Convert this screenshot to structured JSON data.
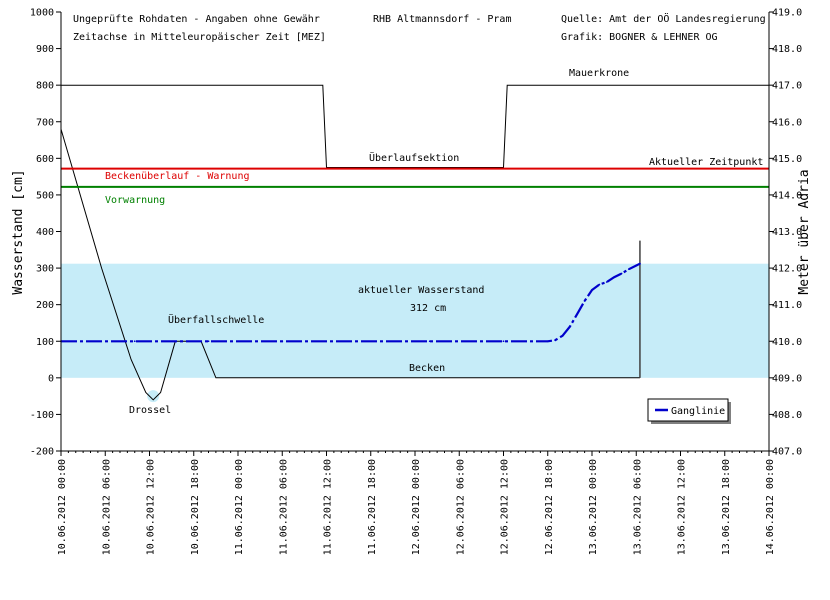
{
  "chart_data": {
    "type": "line",
    "header": {
      "left1": "Ungeprüfte Rohdaten - Angaben ohne Gewähr",
      "left2": "Zeitachse in Mitteleuropäischer Zeit [MEZ]",
      "center": "RHB Altmannsdorf - Pram",
      "right1": "Quelle: Amt der OÖ Landesregierung",
      "right2": "Grafik: BOGNER & LEHNER OG"
    },
    "ylabel": "Wasserstand [cm]",
    "ylabel_right": "Meter über Adria",
    "ylim": [
      -200,
      1000
    ],
    "y_ticks": [
      "-200",
      "-100",
      "0",
      "100",
      "200",
      "300",
      "400",
      "500",
      "600",
      "700",
      "800",
      "900",
      "1000"
    ],
    "y2lim": [
      407.0,
      419.0
    ],
    "y2_ticks": [
      "407.0",
      "408.0",
      "409.0",
      "410.0",
      "411.0",
      "412.0",
      "413.0",
      "414.0",
      "415.0",
      "416.0",
      "417.0",
      "418.0",
      "419.0"
    ],
    "x_range_hours": [
      0,
      96
    ],
    "x_ticks": [
      "10.06.2012 00:00",
      "10.06.2012 06:00",
      "10.06.2012 12:00",
      "10.06.2012 18:00",
      "11.06.2012 00:00",
      "11.06.2012 06:00",
      "11.06.2012 12:00",
      "11.06.2012 18:00",
      "12.06.2012 00:00",
      "12.06.2012 06:00",
      "12.06.2012 12:00",
      "12.06.2012 18:00",
      "13.06.2012 00:00",
      "13.06.2012 06:00",
      "13.06.2012 12:00",
      "13.06.2012 18:00",
      "14.06.2012 00:00"
    ],
    "grid": false,
    "colors": {
      "water": "#c6ecf8",
      "warning": "#dd0000",
      "prewarning": "#008000",
      "series": "#0000cc",
      "structure": "#000000"
    },
    "water_level": {
      "value": 312,
      "label": "aktueller Wasserstand",
      "value_label": "312 cm"
    },
    "thresholds": [
      {
        "name": "Beckenüberlauf - Warnung",
        "value": 572,
        "color": "#dd0000"
      },
      {
        "name": "Vorwarnung",
        "value": 522,
        "color": "#008000"
      }
    ],
    "current_time": {
      "label": "Aktueller Zeitpunkt",
      "hour": 78.5
    },
    "annotations": {
      "mauerkrone": "Mauerkrone",
      "ueberlaufsektion": "Überlaufsektion",
      "ueberfallschwelle": "Überfallschwelle",
      "drossel": "Drossel",
      "becken": "Becken"
    },
    "structure_profile": [
      [
        0,
        800
      ],
      [
        35.5,
        800
      ],
      [
        36,
        575
      ],
      [
        60,
        575
      ],
      [
        60.5,
        800
      ],
      [
        96,
        800
      ]
    ],
    "basin_profile": [
      [
        0,
        680
      ],
      [
        5.5,
        300
      ],
      [
        9.5,
        50
      ],
      [
        11.5,
        -40
      ],
      [
        12.5,
        -60
      ],
      [
        13.5,
        -40
      ],
      [
        15.5,
        100
      ],
      [
        19,
        100
      ],
      [
        21,
        0
      ],
      [
        78.5,
        0
      ]
    ],
    "legend": {
      "label": "Ganglinie",
      "position": "bottom-right"
    },
    "series": [
      {
        "name": "Ganglinie",
        "x": [
          0,
          10,
          20,
          30,
          40,
          50,
          60,
          66,
          67,
          68,
          69,
          70,
          71,
          72,
          73,
          74,
          75,
          76,
          77,
          78,
          78.5
        ],
        "values": [
          100,
          100,
          100,
          100,
          100,
          100,
          100,
          100,
          103,
          115,
          140,
          175,
          210,
          240,
          255,
          262,
          275,
          285,
          297,
          307,
          312
        ]
      }
    ]
  }
}
